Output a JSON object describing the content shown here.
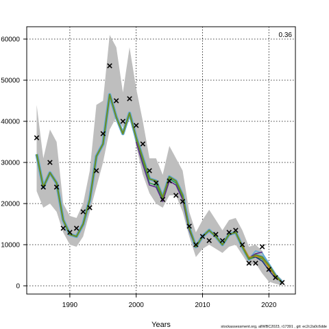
{
  "chart_data": {
    "type": "line",
    "xlabel": "Years",
    "ylabel": "",
    "corner_label": "0.36",
    "footer": "stockassessment.org, allWBC2023, r17391 , git: ec2c2a0c6dde",
    "xlim": [
      1983.5,
      2024
    ],
    "ylim": [
      -2000,
      63000
    ],
    "x_ticks": [
      1990,
      2000,
      2010,
      2020
    ],
    "y_ticks": [
      0,
      10000,
      20000,
      30000,
      40000,
      50000,
      60000
    ],
    "y_tick_labels": [
      "0",
      "10000",
      "20000",
      "30000",
      "40000",
      "50000",
      "60000"
    ],
    "grid": true,
    "colors": {
      "band": "#bebebe",
      "retro_blue": "#5fa8d8",
      "retro_green": "#2a9d4a",
      "retro_purple": "#5a2a8c",
      "retro_darkblue": "#1f2f7a",
      "retro_orange": "#d98c1a",
      "main_line": "#6b8e23",
      "observed": "#000000"
    },
    "band": {
      "x": [
        1985,
        1986,
        1987,
        1988,
        1989,
        1990,
        1991,
        1992,
        1993,
        1994,
        1995,
        1996,
        1997,
        1998,
        1999,
        2000,
        2001,
        2002,
        2003,
        2004,
        2005,
        2006,
        2007,
        2008,
        2009,
        2010,
        2011,
        2012,
        2013,
        2014,
        2015,
        2016,
        2017,
        2018,
        2019,
        2020,
        2021,
        2022
      ],
      "upper": [
        44000,
        31000,
        38000,
        35000,
        20000,
        17000,
        16500,
        20000,
        28000,
        44000,
        45000,
        61000,
        58000,
        47000,
        58000,
        48000,
        40000,
        31000,
        31000,
        27000,
        34000,
        31000,
        28000,
        18000,
        13000,
        16000,
        18500,
        16000,
        13500,
        16000,
        16500,
        13500,
        9500,
        10000,
        8500,
        5000,
        3000,
        1500
      ],
      "lower": [
        23000,
        19000,
        20000,
        18000,
        13000,
        10000,
        9500,
        12000,
        18000,
        24000,
        30000,
        38000,
        41000,
        38500,
        42000,
        34000,
        27000,
        22500,
        20000,
        19000,
        22000,
        22000,
        18000,
        12000,
        7000,
        9000,
        10000,
        9000,
        8000,
        9500,
        10000,
        7500,
        5000,
        5500,
        3000,
        1000,
        500,
        100
      ]
    },
    "series": [
      {
        "role": "main",
        "x": [
          1985,
          1986,
          1987,
          1988,
          1989,
          1990,
          1991,
          1992,
          1993,
          1994,
          1995,
          1996,
          1997,
          1998,
          1999,
          2000,
          2001,
          2002,
          2003,
          2004,
          2005,
          2006,
          2007,
          2008,
          2009,
          2010,
          2011,
          2012,
          2013,
          2014,
          2015,
          2016,
          2017,
          2018,
          2019,
          2020,
          2021,
          2022
        ],
        "values": [
          32000,
          24000,
          27500,
          25000,
          16000,
          12500,
          12000,
          15000,
          21000,
          31500,
          34500,
          46500,
          41000,
          37000,
          42000,
          36000,
          31000,
          26000,
          25500,
          21500,
          26500,
          25500,
          22000,
          14000,
          9500,
          12000,
          13500,
          12000,
          10000,
          12500,
          13000,
          9500,
          6500,
          7500,
          7000,
          5000,
          2500,
          800
        ]
      },
      {
        "role": "retro",
        "x": [
          2005,
          2006,
          2007,
          2008,
          2009,
          2010,
          2011,
          2012,
          2013,
          2014,
          2015,
          2016,
          2017,
          2018,
          2019,
          2020,
          2021
        ],
        "values": [
          26000,
          25000,
          21500,
          14000,
          9500,
          12000,
          13500,
          12000,
          10000,
          12500,
          13000,
          9500,
          6500,
          8500,
          8000,
          5500,
          2800
        ]
      },
      {
        "role": "retro",
        "x": [
          2000,
          2001,
          2002,
          2003,
          2004,
          2005,
          2006,
          2007,
          2008,
          2009,
          2010,
          2011,
          2012,
          2013,
          2014,
          2015,
          2016,
          2017,
          2018,
          2019,
          2020
        ],
        "values": [
          35500,
          30000,
          25000,
          24500,
          21000,
          26000,
          25000,
          21500,
          14000,
          9500,
          12000,
          13500,
          12000,
          10000,
          12500,
          13000,
          9500,
          6500,
          7000,
          6500,
          4500
        ]
      },
      {
        "role": "retro",
        "x": [
          2000,
          2001,
          2002,
          2003,
          2004,
          2005,
          2006,
          2007,
          2008,
          2009,
          2010,
          2011,
          2012,
          2013,
          2014,
          2015,
          2016,
          2017,
          2018,
          2019
        ],
        "values": [
          35000,
          29500,
          24500,
          24000,
          20500,
          25500,
          24500,
          21000,
          13500,
          9500,
          12000,
          13500,
          12000,
          10000,
          12500,
          13000,
          9500,
          6800,
          7800,
          8200
        ]
      },
      {
        "role": "retro",
        "x": [
          2014,
          2015,
          2016,
          2017,
          2018,
          2019,
          2020,
          2021
        ],
        "values": [
          12500,
          13000,
          9500,
          6800,
          7000,
          6000,
          3800,
          1800
        ]
      },
      {
        "role": "retro",
        "x": [
          2015,
          2016,
          2017,
          2018,
          2019,
          2020,
          2021,
          2022
        ],
        "values": [
          13000,
          9800,
          7000,
          7200,
          6800,
          4500,
          2200,
          700
        ]
      }
    ],
    "observed": {
      "x": [
        1985,
        1986,
        1987,
        1988,
        1989,
        1990,
        1991,
        1992,
        1993,
        1994,
        1995,
        1996,
        1997,
        1998,
        1999,
        2000,
        2001,
        2002,
        2003,
        2004,
        2005,
        2006,
        2007,
        2008,
        2009,
        2010,
        2011,
        2012,
        2013,
        2014,
        2015,
        2016,
        2017,
        2018,
        2019,
        2020,
        2021,
        2022
      ],
      "values": [
        36000,
        24000,
        30000,
        24000,
        14000,
        13000,
        14000,
        18000,
        19000,
        28000,
        37000,
        53500,
        45000,
        40000,
        45500,
        39000,
        34500,
        28000,
        25000,
        21000,
        25500,
        22000,
        20500,
        14500,
        10000,
        12000,
        11000,
        12500,
        11000,
        13000,
        13500,
        10000,
        5500,
        5500,
        9500,
        4000,
        2000,
        800
      ]
    }
  }
}
